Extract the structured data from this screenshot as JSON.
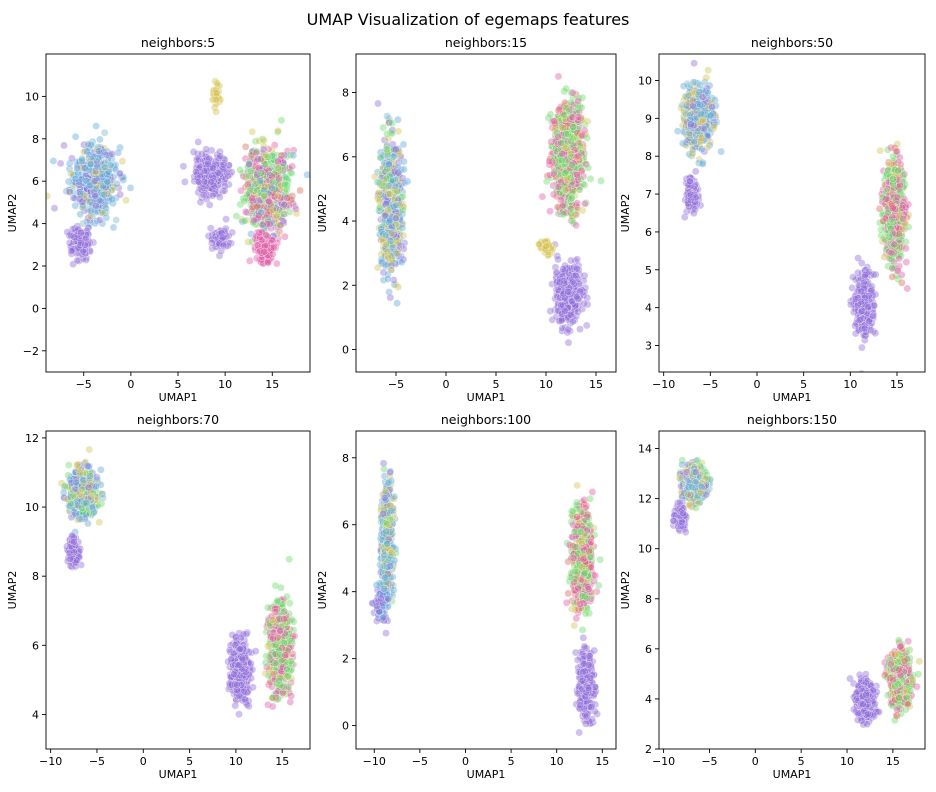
{
  "figure": {
    "title": "UMAP Visualization of egemaps features",
    "palette": [
      "#8e6bd8",
      "#5fa6d8",
      "#d4c24e",
      "#e05aa8",
      "#6ad86a",
      "#d86a5a",
      "#7ab8c8"
    ]
  },
  "chart_data": [
    {
      "type": "scatter",
      "title": "neighbors:5",
      "xlabel": "UMAP1",
      "ylabel": "UMAP2",
      "xlim": [
        -9,
        19
      ],
      "ylim": [
        -3,
        12
      ],
      "xticks": [
        -5,
        0,
        5,
        10,
        15
      ],
      "yticks": [
        -2,
        0,
        2,
        4,
        6,
        8,
        10
      ],
      "grid": false,
      "legend": "none",
      "clusters": [
        {
          "cx": -4,
          "cy": 6,
          "sx": 2.2,
          "sy": 1.5,
          "n": 520,
          "mix": [
            2,
            4,
            1,
            0,
            0,
            0,
            1
          ]
        },
        {
          "cx": -5.5,
          "cy": 3.2,
          "sx": 1.0,
          "sy": 0.6,
          "n": 140,
          "mix": [
            1,
            0,
            0,
            0,
            0,
            0,
            0
          ]
        },
        {
          "cx": 8.5,
          "cy": 6.3,
          "sx": 1.6,
          "sy": 0.8,
          "n": 320,
          "mix": [
            1,
            0,
            0,
            0,
            0,
            0,
            0
          ]
        },
        {
          "cx": 14.5,
          "cy": 5.5,
          "sx": 2.0,
          "sy": 1.8,
          "n": 720,
          "mix": [
            1,
            1,
            1,
            3,
            4,
            1,
            0
          ]
        },
        {
          "cx": 9.5,
          "cy": 3.3,
          "sx": 0.9,
          "sy": 0.5,
          "n": 90,
          "mix": [
            1,
            0,
            0,
            0,
            0,
            0,
            0
          ]
        },
        {
          "cx": 14.3,
          "cy": 2.8,
          "sx": 0.9,
          "sy": 0.6,
          "n": 120,
          "mix": [
            0,
            0,
            0,
            1,
            0,
            0,
            0
          ]
        },
        {
          "cx": 9.0,
          "cy": 10.0,
          "sx": 0.5,
          "sy": 0.6,
          "n": 25,
          "mix": [
            0,
            0,
            1,
            0,
            0,
            0,
            0
          ]
        }
      ]
    },
    {
      "type": "scatter",
      "title": "neighbors:15",
      "xlabel": "UMAP1",
      "ylabel": "UMAP2",
      "xlim": [
        -9,
        17
      ],
      "ylim": [
        -0.7,
        9.2
      ],
      "xticks": [
        -5,
        0,
        5,
        10,
        15
      ],
      "yticks": [
        0,
        2,
        4,
        6,
        8
      ],
      "grid": false,
      "legend": "none",
      "clusters": [
        {
          "cx": -5.5,
          "cy": 4.5,
          "sx": 1.0,
          "sy": 1.8,
          "n": 650,
          "mix": [
            2,
            3,
            2,
            0,
            1,
            0,
            1
          ]
        },
        {
          "cx": 12.2,
          "cy": 6.0,
          "sx": 1.4,
          "sy": 1.5,
          "n": 820,
          "mix": [
            0,
            0,
            1,
            3,
            4,
            1,
            0
          ]
        },
        {
          "cx": 12.2,
          "cy": 1.7,
          "sx": 1.2,
          "sy": 0.8,
          "n": 380,
          "mix": [
            1,
            0,
            0,
            0,
            0,
            0,
            0
          ]
        },
        {
          "cx": 10.0,
          "cy": 3.2,
          "sx": 0.6,
          "sy": 0.2,
          "n": 40,
          "mix": [
            0,
            0,
            1,
            0,
            0,
            0,
            0
          ]
        }
      ]
    },
    {
      "type": "scatter",
      "title": "neighbors:50",
      "xlabel": "UMAP1",
      "ylabel": "UMAP2",
      "xlim": [
        -10.5,
        18
      ],
      "ylim": [
        2.3,
        10.7
      ],
      "xticks": [
        -10,
        -5,
        0,
        5,
        10,
        15
      ],
      "yticks": [
        3,
        4,
        5,
        6,
        7,
        8,
        9,
        10
      ],
      "grid": false,
      "legend": "none",
      "clusters": [
        {
          "cx": -6.3,
          "cy": 9.0,
          "sx": 1.4,
          "sy": 0.7,
          "n": 560,
          "mix": [
            1,
            3,
            2,
            0,
            0,
            0,
            1
          ]
        },
        {
          "cx": -7.0,
          "cy": 7.0,
          "sx": 0.6,
          "sy": 0.4,
          "n": 120,
          "mix": [
            1,
            0,
            0,
            0,
            0,
            0,
            0
          ]
        },
        {
          "cx": 14.7,
          "cy": 6.5,
          "sx": 1.0,
          "sy": 1.2,
          "n": 620,
          "mix": [
            0,
            0,
            1,
            3,
            4,
            1,
            0
          ]
        },
        {
          "cx": 11.5,
          "cy": 4.1,
          "sx": 0.9,
          "sy": 0.7,
          "n": 360,
          "mix": [
            1,
            0,
            0,
            0,
            0,
            0,
            0
          ]
        }
      ]
    },
    {
      "type": "scatter",
      "title": "neighbors:70",
      "xlabel": "UMAP1",
      "ylabel": "UMAP2",
      "xlim": [
        -10.5,
        18
      ],
      "ylim": [
        3,
        12.2
      ],
      "xticks": [
        -10,
        -5,
        0,
        5,
        10,
        15
      ],
      "yticks": [
        4,
        6,
        8,
        10,
        12
      ],
      "grid": false,
      "legend": "none",
      "clusters": [
        {
          "cx": -6.5,
          "cy": 10.4,
          "sx": 1.4,
          "sy": 0.6,
          "n": 580,
          "mix": [
            1,
            3,
            2,
            0,
            1,
            0,
            1
          ]
        },
        {
          "cx": -7.5,
          "cy": 8.7,
          "sx": 0.6,
          "sy": 0.4,
          "n": 110,
          "mix": [
            1,
            0,
            0,
            0,
            0,
            0,
            0
          ]
        },
        {
          "cx": 10.5,
          "cy": 5.3,
          "sx": 0.9,
          "sy": 0.8,
          "n": 420,
          "mix": [
            1,
            0,
            0,
            0,
            0,
            0,
            0
          ]
        },
        {
          "cx": 14.7,
          "cy": 5.9,
          "sx": 1.0,
          "sy": 1.1,
          "n": 620,
          "mix": [
            0,
            0,
            1,
            3,
            4,
            1,
            0
          ]
        }
      ]
    },
    {
      "type": "scatter",
      "title": "neighbors:100",
      "xlabel": "UMAP1",
      "ylabel": "UMAP2",
      "xlim": [
        -12,
        16.5
      ],
      "ylim": [
        -0.7,
        8.8
      ],
      "xticks": [
        -10,
        -5,
        0,
        5,
        10,
        15
      ],
      "yticks": [
        0,
        2,
        4,
        6,
        8
      ],
      "grid": false,
      "legend": "none",
      "clusters": [
        {
          "cx": -8.6,
          "cy": 5.5,
          "sx": 0.6,
          "sy": 1.5,
          "n": 520,
          "mix": [
            1,
            3,
            2,
            0,
            1,
            0,
            1
          ]
        },
        {
          "cx": -9.2,
          "cy": 3.6,
          "sx": 0.7,
          "sy": 0.5,
          "n": 120,
          "mix": [
            1,
            1,
            0,
            0,
            0,
            0,
            0
          ]
        },
        {
          "cx": 12.8,
          "cy": 4.9,
          "sx": 1.0,
          "sy": 1.3,
          "n": 650,
          "mix": [
            0,
            0,
            1,
            3,
            4,
            1,
            0
          ]
        },
        {
          "cx": 13.2,
          "cy": 1.2,
          "sx": 0.7,
          "sy": 0.9,
          "n": 340,
          "mix": [
            1,
            0,
            0,
            0,
            0,
            0,
            0
          ]
        }
      ]
    },
    {
      "type": "scatter",
      "title": "neighbors:150",
      "xlabel": "UMAP1",
      "ylabel": "UMAP2",
      "xlim": [
        -10.5,
        18.5
      ],
      "ylim": [
        2,
        14.7
      ],
      "xticks": [
        -10,
        -5,
        0,
        5,
        10,
        15
      ],
      "yticks": [
        2,
        4,
        6,
        8,
        10,
        12,
        14
      ],
      "grid": false,
      "legend": "none",
      "clusters": [
        {
          "cx": -6.6,
          "cy": 12.6,
          "sx": 1.2,
          "sy": 0.6,
          "n": 540,
          "mix": [
            1,
            3,
            2,
            0,
            1,
            0,
            1
          ]
        },
        {
          "cx": -8.2,
          "cy": 11.3,
          "sx": 0.6,
          "sy": 0.4,
          "n": 100,
          "mix": [
            1,
            0,
            0,
            0,
            0,
            0,
            0
          ]
        },
        {
          "cx": 12.0,
          "cy": 4.0,
          "sx": 0.9,
          "sy": 0.7,
          "n": 360,
          "mix": [
            1,
            0,
            0,
            0,
            0,
            0,
            0
          ]
        },
        {
          "cx": 15.8,
          "cy": 4.8,
          "sx": 1.0,
          "sy": 1.0,
          "n": 600,
          "mix": [
            0,
            0,
            1,
            3,
            4,
            1,
            0
          ]
        }
      ]
    }
  ]
}
